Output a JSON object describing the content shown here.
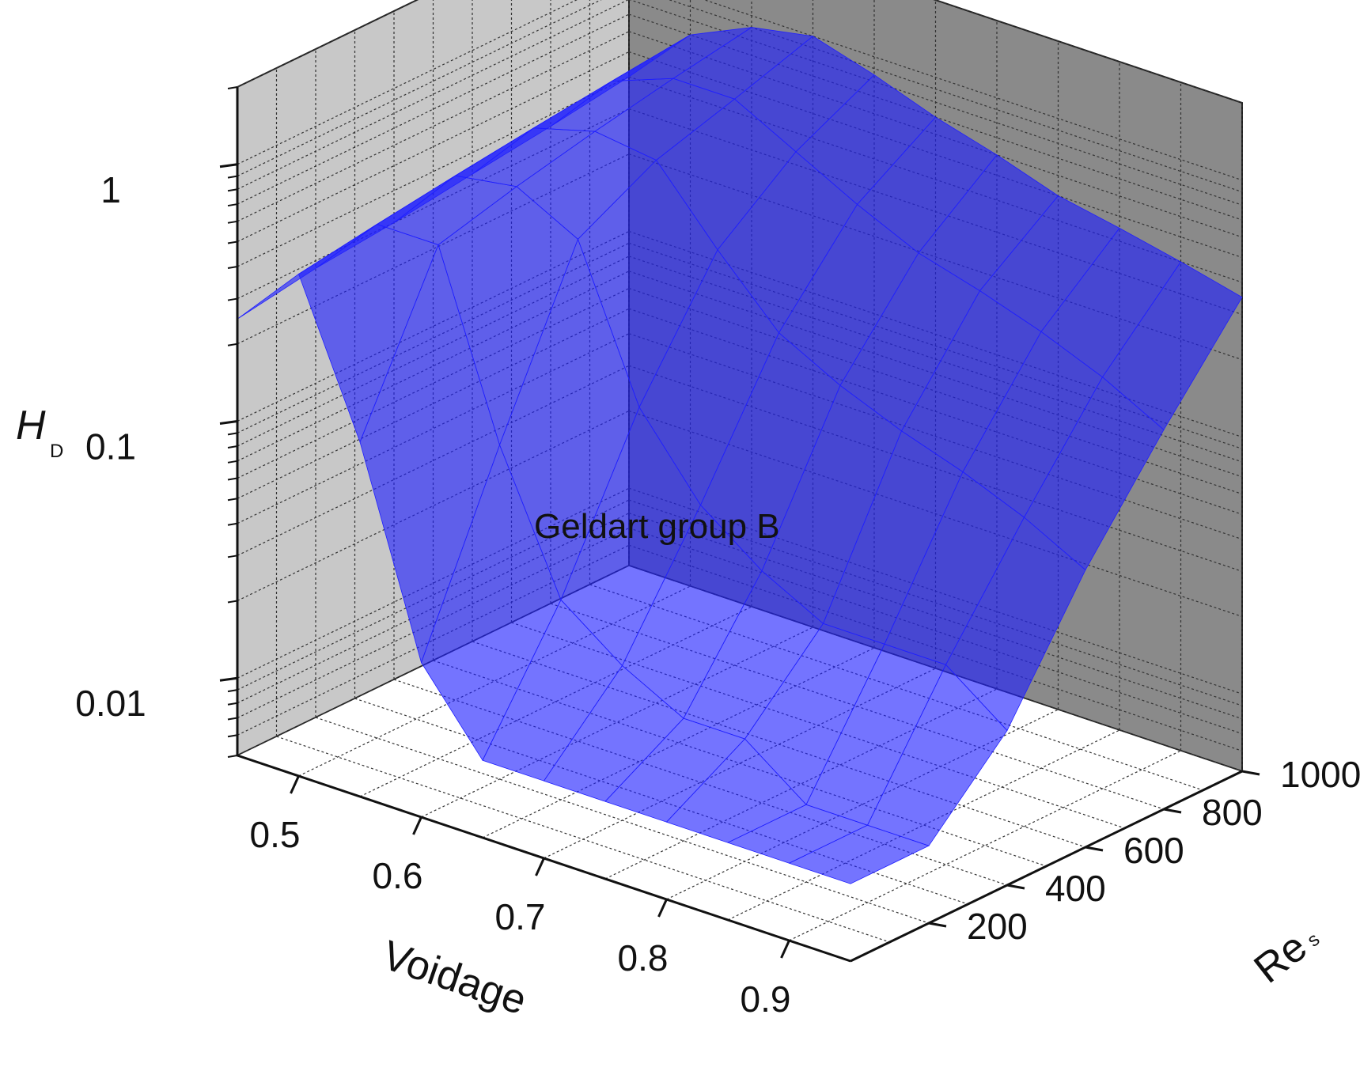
{
  "chart_data": {
    "type": "surface-3d",
    "annotation": "Geldart group B",
    "x_axis": {
      "label": "Voidage",
      "range": [
        0.45,
        0.95
      ],
      "ticks": [
        0.5,
        0.6,
        0.7,
        0.8,
        0.9
      ],
      "tick_labels": [
        "0.5",
        "0.6",
        "0.7",
        "0.8",
        "0.9"
      ]
    },
    "y_axis": {
      "label": "Re",
      "label_subscript": "s",
      "range": [
        0,
        1000
      ],
      "ticks": [
        200,
        400,
        600,
        800,
        1000
      ],
      "tick_labels": [
        "200",
        "400",
        "600",
        "800",
        "1000"
      ]
    },
    "z_axis": {
      "label": "H",
      "label_subscript": "D",
      "scale": "log",
      "range": [
        0.005,
        2
      ],
      "ticks": [
        0.01,
        0.1,
        1
      ],
      "tick_labels": [
        "0.01",
        "0.1",
        "1"
      ]
    },
    "grid": true,
    "surface_color": "#1f1fff",
    "wall_colors": {
      "left": "#c8c8c8",
      "back": "#8a8a8a",
      "floor": "#ffffff"
    },
    "surface": {
      "note_free": true,
      "voidage": [
        0.45,
        0.5,
        0.55,
        0.6,
        0.65,
        0.7,
        0.75,
        0.8,
        0.85,
        0.9,
        0.95
      ],
      "Re_s": [
        0,
        200,
        400,
        600,
        800,
        1000
      ],
      "HD": [
        [
          0.25,
          0.45,
          0.12,
          0.02,
          0.01,
          0.01,
          0.01,
          0.01,
          0.01,
          0.01,
          0.01
        ],
        [
          0.28,
          0.5,
          0.5,
          0.1,
          0.03,
          0.02,
          0.015,
          0.015,
          0.01,
          0.01,
          0.01
        ],
        [
          0.3,
          0.55,
          0.6,
          0.45,
          0.12,
          0.06,
          0.04,
          0.03,
          0.03,
          0.03,
          0.02
        ],
        [
          0.33,
          0.6,
          0.7,
          0.65,
          0.35,
          0.2,
          0.15,
          0.12,
          0.1,
          0.08,
          0.06
        ],
        [
          0.36,
          0.65,
          0.8,
          0.8,
          0.6,
          0.45,
          0.35,
          0.3,
          0.25,
          0.2,
          0.15
        ],
        [
          0.4,
          0.7,
          0.9,
          1.0,
          0.85,
          0.7,
          0.6,
          0.5,
          0.45,
          0.4,
          0.35
        ]
      ]
    }
  }
}
